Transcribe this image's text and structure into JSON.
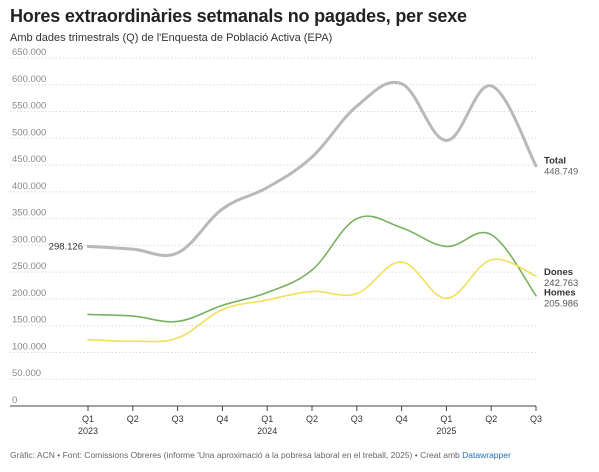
{
  "header": {
    "title": "Hores extraordinàries setmanals no pagades, per sexe",
    "subtitle": "Amb dades trimestrals (Q) de l'Enquesta de Població Activa (EPA)"
  },
  "footer": {
    "source": "Gràfic: ACN • Font: Comissions Obreres (informe 'Una aproximació a la pobresa laboral en el treball, 2025) • Creat amb",
    "credit": "Datawrapper"
  },
  "chart_data": {
    "type": "line",
    "title": "Hores extraordinàries setmanals no pagades, per sexe",
    "subtitle": "Amb dades trimestrals (Q) de l'Enquesta de Població Activa (EPA)",
    "categories": [
      "Q1",
      "Q2",
      "Q3",
      "Q4",
      "Q1",
      "Q2",
      "Q3",
      "Q4",
      "Q1",
      "Q2",
      "Q3"
    ],
    "year_labels": [
      {
        "index": 0,
        "label": "2023"
      },
      {
        "index": 4,
        "label": "2024"
      },
      {
        "index": 8,
        "label": "2025"
      }
    ],
    "y_ticks": [
      0,
      50000,
      100000,
      150000,
      200000,
      250000,
      300000,
      350000,
      400000,
      450000,
      500000,
      550000,
      600000,
      650000
    ],
    "y_tick_labels": [
      "0",
      "50.000",
      "100.000",
      "150.000",
      "200.000",
      "250.000",
      "300.000",
      "350.000",
      "400.000",
      "450.000",
      "500.000",
      "550.000",
      "600.000",
      "650.000"
    ],
    "ylim": [
      0,
      650000
    ],
    "grid": true,
    "series": [
      {
        "name": "Total",
        "color": "#b9b9b9",
        "values": [
          298126,
          293000,
          286000,
          368000,
          408000,
          465000,
          560000,
          602000,
          496000,
          598000,
          448749
        ],
        "start_label": "298.126",
        "end_label": "448.749"
      },
      {
        "name": "Homes",
        "color": "#78b161",
        "values": [
          171000,
          168000,
          158000,
          188000,
          212000,
          254000,
          350000,
          333000,
          298000,
          320000,
          205986
        ],
        "end_label": "205.986"
      },
      {
        "name": "Dones",
        "color": "#f2df5a",
        "values": [
          124000,
          121000,
          127000,
          180000,
          198000,
          214000,
          210000,
          269000,
          201000,
          273000,
          242763
        ],
        "end_label": "242.763"
      }
    ]
  }
}
